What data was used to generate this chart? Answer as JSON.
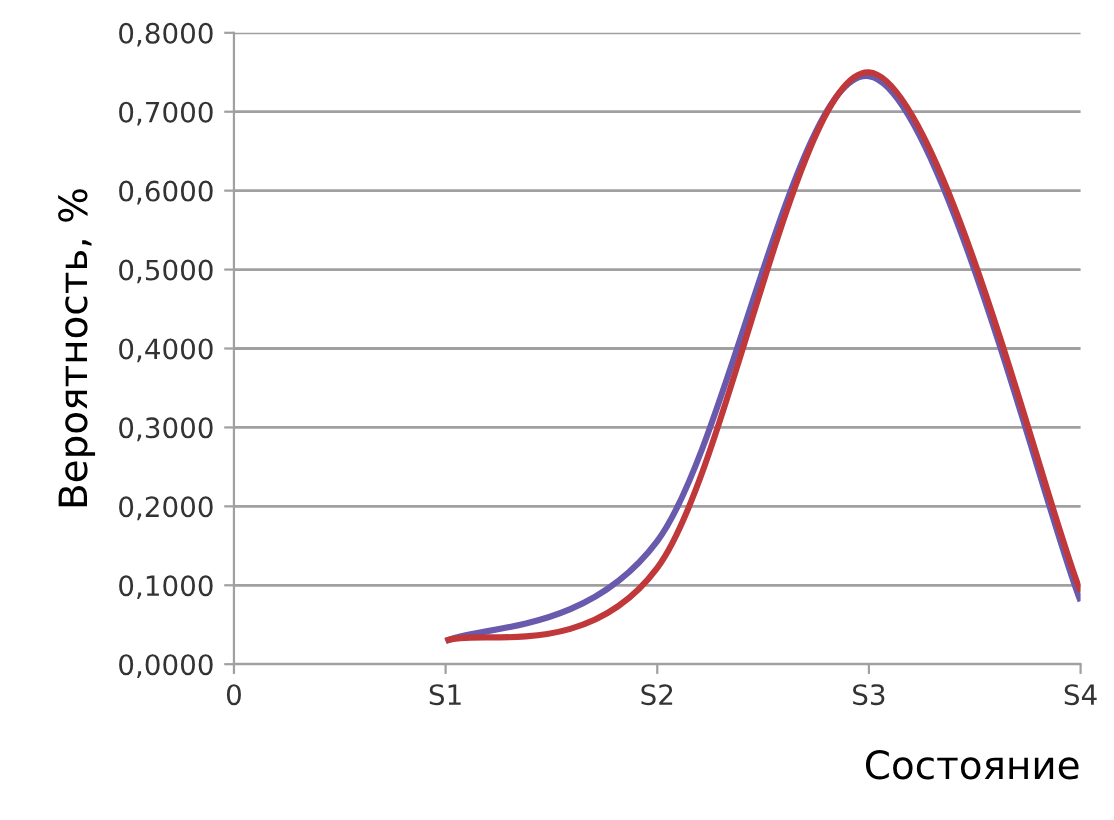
{
  "chart_data": {
    "type": "line",
    "xlabel": "Состояние",
    "ylabel": "Вероятность, %",
    "categories": [
      "0",
      "S1",
      "S2",
      "S3",
      "S4"
    ],
    "series": [
      {
        "color": "#6a5aad",
        "values": [
          null,
          0.029,
          0.156,
          0.745,
          0.08
        ]
      },
      {
        "color": "#c0383a",
        "values": [
          null,
          0.03,
          0.122,
          0.75,
          0.092
        ]
      }
    ],
    "ylim": [
      0,
      0.8
    ],
    "yticks": [
      {
        "value": 0,
        "label": "0,0000"
      },
      {
        "value": 0.1,
        "label": "0,1000"
      },
      {
        "value": 0.2,
        "label": "0,2000"
      },
      {
        "value": 0.3,
        "label": "0,3000"
      },
      {
        "value": 0.4,
        "label": "0,4000"
      },
      {
        "value": 0.5,
        "label": "0,5000"
      },
      {
        "value": 0.6,
        "label": "0,6000"
      },
      {
        "value": 0.7,
        "label": "0,7000"
      },
      {
        "value": 0.8,
        "label": "0,8000"
      }
    ],
    "grid": "y",
    "marker": "none",
    "line_style": "solid"
  }
}
